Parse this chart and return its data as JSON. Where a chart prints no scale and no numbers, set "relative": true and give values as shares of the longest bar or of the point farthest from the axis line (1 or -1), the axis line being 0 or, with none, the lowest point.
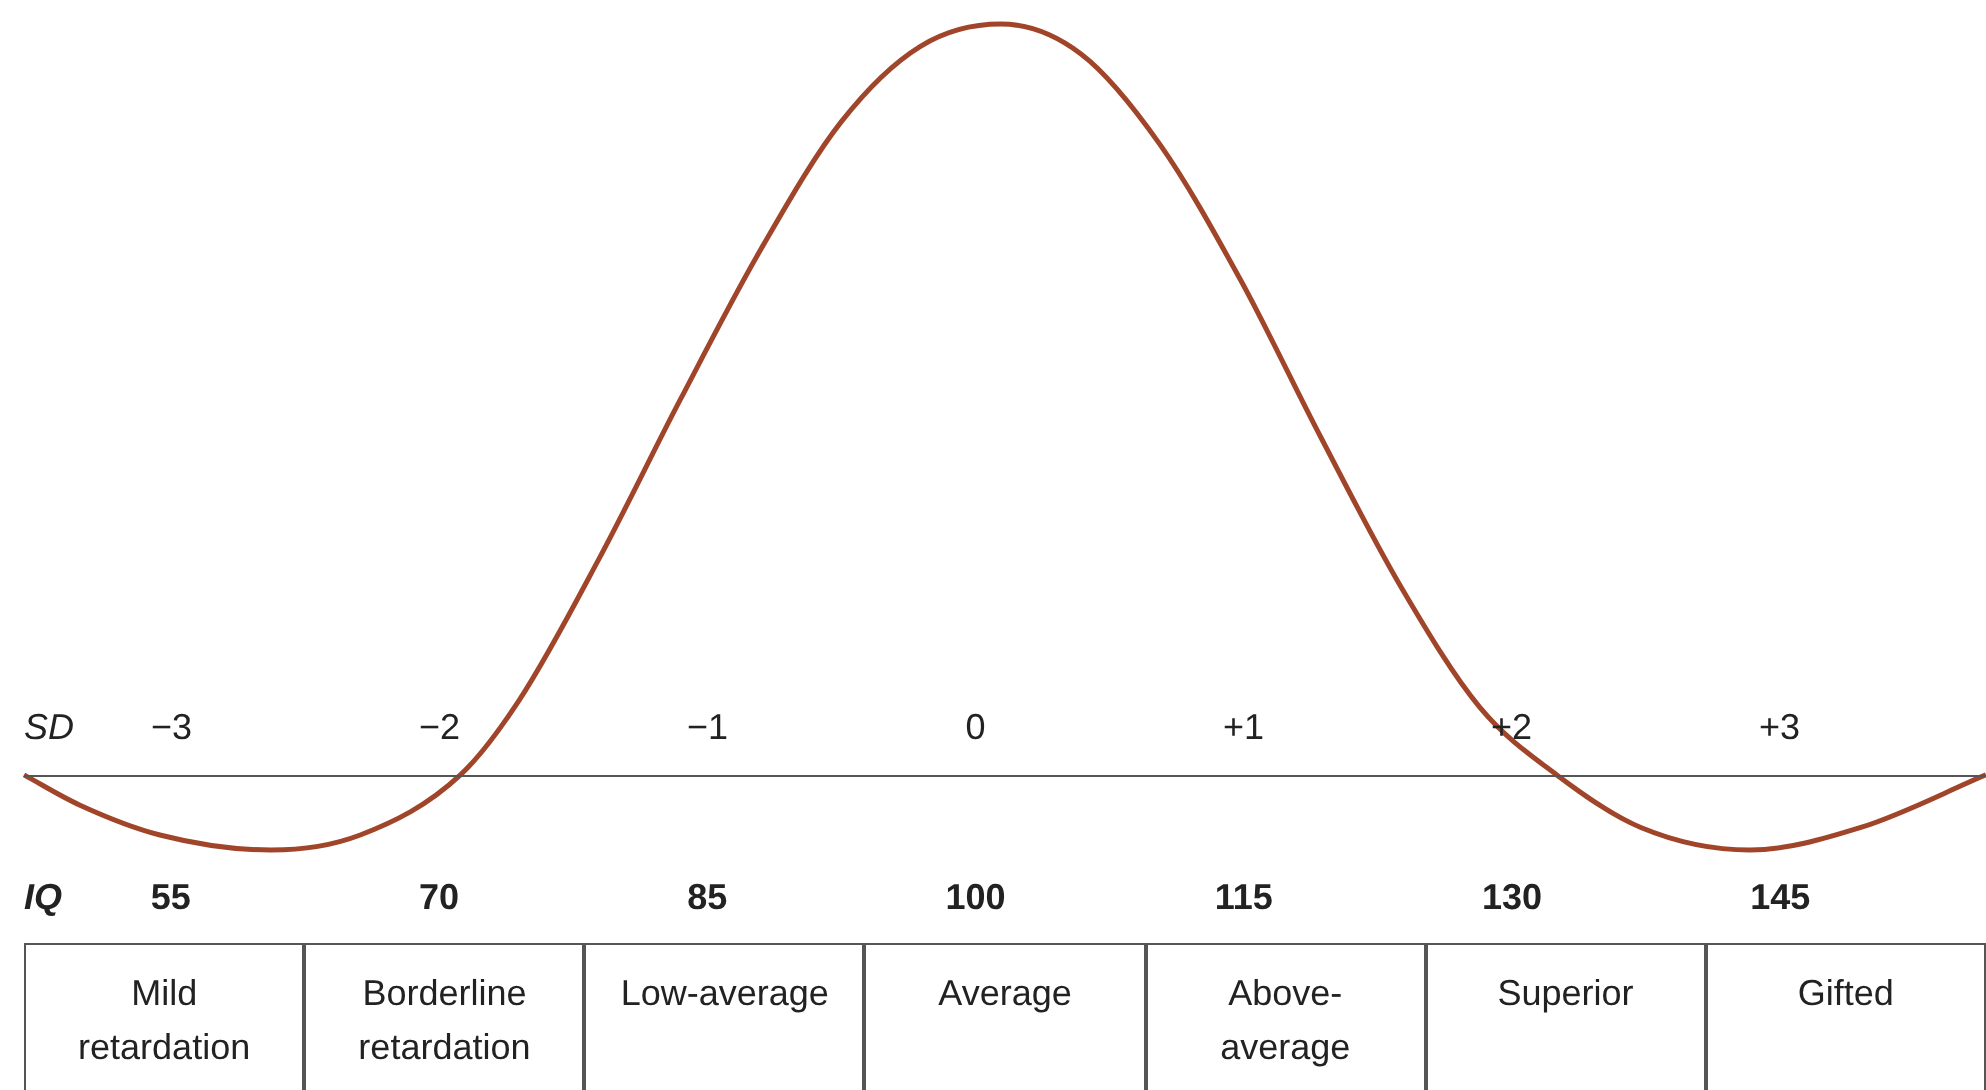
{
  "chart_data": {
    "type": "line",
    "relative": true,
    "color": "#a0452a",
    "marker": "none",
    "x": [
      46.8,
      49.9,
      54.4,
      60.6,
      65.6,
      71.2,
      74.5,
      79.0,
      83.5,
      88.0,
      92.5,
      96.9,
      101.4,
      105.9,
      110.3,
      114.8,
      119.3,
      123.8,
      128.2,
      132.5,
      137.2,
      143.3,
      149.5,
      156.5
    ],
    "values": [
      0,
      -0.04,
      -0.08,
      -0.1,
      -0.08,
      0,
      0.1,
      0.29,
      0.5,
      0.7,
      0.87,
      0.97,
      1,
      0.96,
      0.84,
      0.66,
      0.45,
      0.25,
      0.09,
      0,
      -0.07,
      -0.1,
      -0.07,
      0
    ],
    "xlim": [
      46.8,
      156.5
    ],
    "xticks": [
      55,
      70,
      85,
      100,
      115,
      130,
      145
    ],
    "xlabel": "IQ",
    "x2lim": [
      -3.55,
      3.77
    ],
    "x2ticks": [
      {
        "value": -3,
        "label": "−3"
      },
      {
        "value": -2,
        "label": "−2"
      },
      {
        "value": -1,
        "label": "−1"
      },
      0,
      {
        "value": 1,
        "label": "+1"
      },
      {
        "value": 2,
        "label": "+2"
      },
      {
        "value": 3,
        "label": "+3"
      }
    ],
    "x2label": "SD",
    "annotations": [
      "Mild retardation",
      "Borderline retardation",
      "Low-average",
      "Average",
      "Above-average",
      "Superior",
      "Gifted"
    ]
  }
}
